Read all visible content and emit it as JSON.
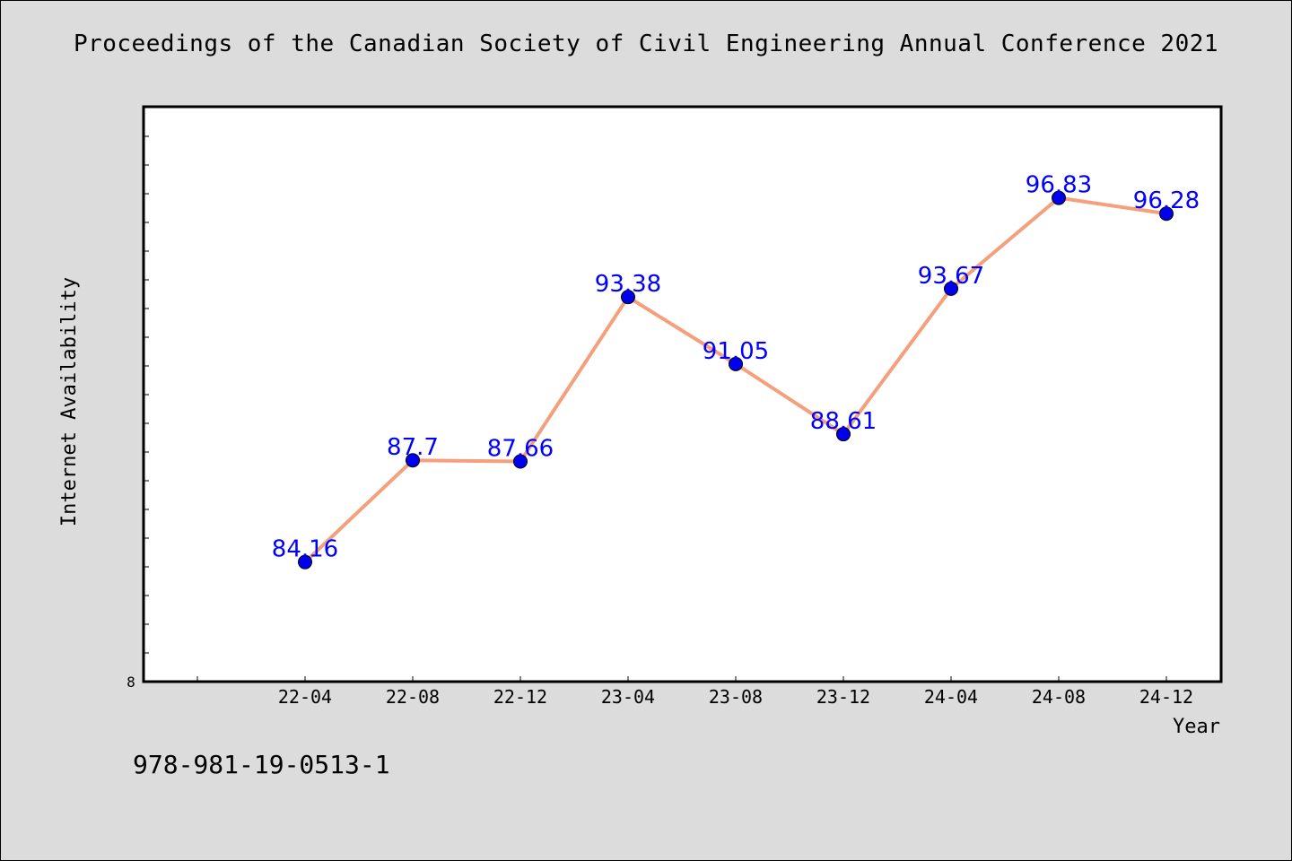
{
  "title": "Proceedings of the Canadian Society of Civil Engineering Annual Conference 2021",
  "footer": {
    "isbn": "978-981-19-0513-1"
  },
  "chart_data": {
    "type": "line",
    "title": "Proceedings of the Canadian Society of Civil Engineering Annual Conference 2021",
    "xlabel": "Year",
    "ylabel": "Internet Availability",
    "categories": [
      "22-04",
      "22-08",
      "22-12",
      "23-04",
      "23-08",
      "23-12",
      "24-04",
      "24-08",
      "24-12"
    ],
    "series": [
      {
        "values": [
          84.16,
          87.7,
          87.66,
          93.38,
          91.05,
          88.61,
          93.67,
          96.83,
          96.28
        ],
        "labels": [
          "84.16",
          "87.7",
          "87.66",
          "93.38",
          "91.05",
          "88.61",
          "93.67",
          "96.83",
          "96.28"
        ],
        "line_color": "#f4a07c",
        "marker_color": "#0000ee",
        "label_color": "#0000ff"
      }
    ],
    "yaxis_visible_tick_label": "8",
    "ylim": [
      80,
      100
    ],
    "grid": false,
    "legend": "none",
    "colors": {
      "background": "#dcdcdc",
      "plot_background": "#ffffff",
      "axis": "#000000"
    }
  }
}
